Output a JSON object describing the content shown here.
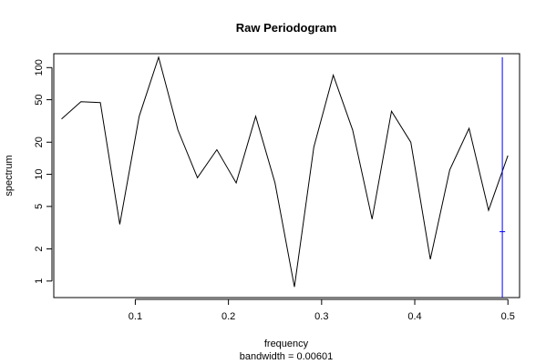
{
  "chart_data": {
    "type": "line",
    "title": "Raw Periodogram",
    "xlabel": "frequency",
    "sub": "bandwidth = 0.00601",
    "ylabel": "spectrum",
    "y_scale": "log",
    "xlim": [
      0.0125,
      0.5125
    ],
    "ylim": [
      0.7,
      135
    ],
    "x_ticks": [
      0.1,
      0.2,
      0.3,
      0.4,
      0.5
    ],
    "x_tick_labels": [
      "0.1",
      "0.2",
      "0.3",
      "0.4",
      "0.5"
    ],
    "y_ticks": [
      1,
      2,
      5,
      10,
      20,
      50,
      100
    ],
    "y_tick_labels": [
      "1",
      "2",
      "5",
      "10",
      "20",
      "50",
      "100"
    ],
    "series": [
      {
        "color": "#000000",
        "x": [
          0.0208,
          0.0417,
          0.0625,
          0.0833,
          0.1042,
          0.125,
          0.1458,
          0.1667,
          0.1875,
          0.2083,
          0.2292,
          0.25,
          0.2708,
          0.2917,
          0.3125,
          0.3333,
          0.3542,
          0.375,
          0.3958,
          0.4167,
          0.4375,
          0.4583,
          0.4792,
          0.5
        ],
        "y": [
          33,
          48,
          47,
          3.4,
          35,
          125,
          26,
          9.3,
          17,
          8.3,
          35,
          8.3,
          0.88,
          18,
          85,
          26,
          3.8,
          39,
          20,
          1.6,
          11,
          27,
          4.6,
          15
        ]
      }
    ],
    "bandwidth_marker": {
      "color": "#0000ff",
      "x": 0.494,
      "y_top": 125,
      "y_bottom": 0.7,
      "crossbar_y": 2.9,
      "half_width": 0.003
    }
  }
}
